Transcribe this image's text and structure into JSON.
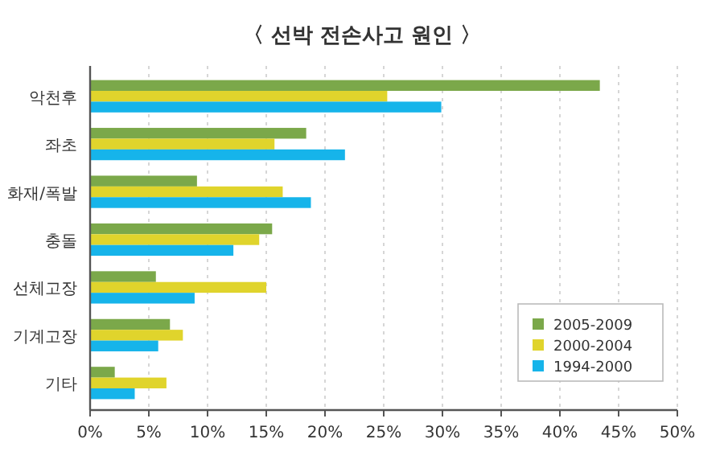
{
  "chart_data": {
    "type": "bar",
    "orientation": "horizontal",
    "title": "〈 선박 전손사고 원인 〉",
    "categories": [
      "악천후",
      "좌초",
      "화재/폭발",
      "충돌",
      "선체고장",
      "기계고장",
      "기타"
    ],
    "series": [
      {
        "name": "2005-2009",
        "color": "#7ba84a",
        "values": [
          43.4,
          18.4,
          9.1,
          15.5,
          5.6,
          6.8,
          2.1
        ]
      },
      {
        "name": "2000-2004",
        "color": "#e0d42c",
        "values": [
          25.3,
          15.7,
          16.4,
          14.4,
          15.0,
          7.9,
          6.5
        ]
      },
      {
        "name": "1994-2000",
        "color": "#16b4ea",
        "values": [
          29.9,
          21.7,
          18.8,
          12.2,
          8.9,
          5.8,
          3.8
        ]
      }
    ],
    "xlim": [
      0,
      50
    ],
    "xticks": [
      {
        "value": 0,
        "label": "0%"
      },
      {
        "value": 5,
        "label": "5%"
      },
      {
        "value": 10,
        "label": "10%"
      },
      {
        "value": 15,
        "label": "15%"
      },
      {
        "value": 20,
        "label": "20%"
      },
      {
        "value": 25,
        "label": "25%"
      },
      {
        "value": 30,
        "label": "30%"
      },
      {
        "value": 35,
        "label": "35%"
      },
      {
        "value": 40,
        "label": "40%"
      },
      {
        "value": 45,
        "label": "45%"
      },
      {
        "value": 50,
        "label": "50%"
      }
    ],
    "grid": "x",
    "legend": "bottom right"
  }
}
